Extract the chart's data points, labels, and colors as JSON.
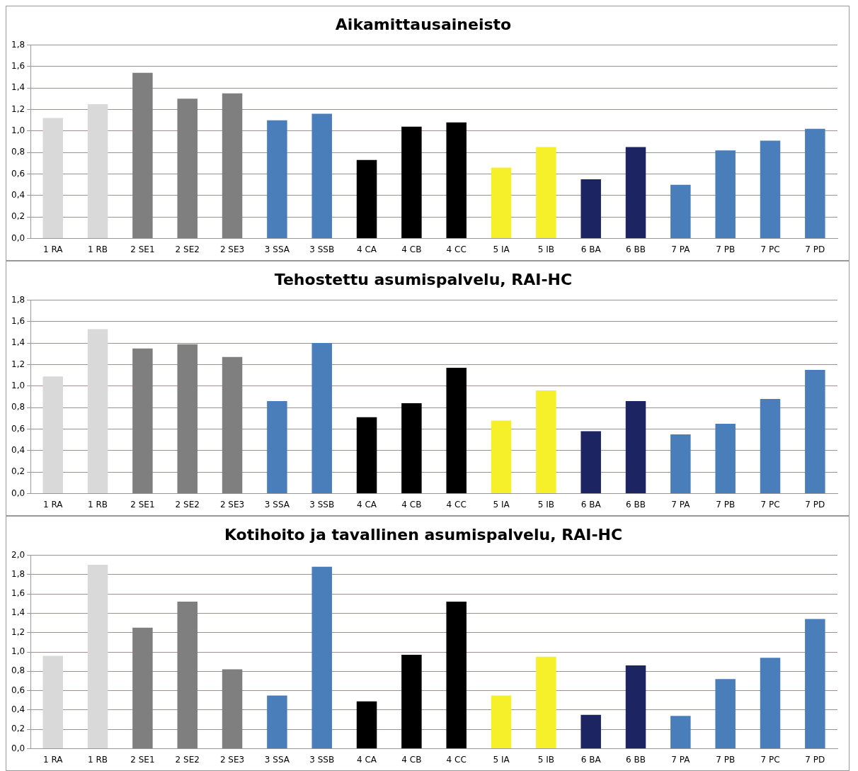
{
  "chart_data": [
    {
      "type": "bar",
      "title": "Aikamittausaineisto",
      "categories": [
        "1 RA",
        "1 RB",
        "2 SE1",
        "2 SE2",
        "2 SE3",
        "3 SSA",
        "3 SSB",
        "4 CA",
        "4 CB",
        "4 CC",
        "5 IA",
        "5 IB",
        "6 BA",
        "6 BB",
        "7 PA",
        "7 PB",
        "7 PC",
        "7 PD"
      ],
      "values": [
        1.12,
        1.25,
        1.54,
        1.3,
        1.35,
        1.1,
        1.16,
        0.73,
        1.04,
        1.08,
        0.66,
        0.85,
        0.55,
        0.85,
        0.5,
        0.82,
        0.91,
        1.02
      ],
      "colors": [
        "#d9d9d9",
        "#d9d9d9",
        "#7f7f7f",
        "#7f7f7f",
        "#7f7f7f",
        "#4a7ebb",
        "#4a7ebb",
        "#000000",
        "#000000",
        "#000000",
        "#f5f02a",
        "#f5f02a",
        "#1c2461",
        "#1c2461",
        "#4a7ebb",
        "#4a7ebb",
        "#4a7ebb",
        "#4a7ebb"
      ],
      "ylim": [
        0,
        1.8
      ],
      "yticks": [
        {
          "value": 0,
          "label": "0,0"
        },
        {
          "value": 0.2,
          "label": "0,2"
        },
        {
          "value": 0.4,
          "label": "0,4"
        },
        {
          "value": 0.6,
          "label": "0,6"
        },
        {
          "value": 0.8,
          "label": "0,8"
        },
        {
          "value": 1,
          "label": "1,0"
        },
        {
          "value": 1.2,
          "label": "1,2"
        },
        {
          "value": 1.4,
          "label": "1,4"
        },
        {
          "value": 1.6,
          "label": "1,6"
        },
        {
          "value": 1.8,
          "label": "1,8"
        }
      ],
      "grid": "y"
    },
    {
      "type": "bar",
      "title": "Tehostettu asumispalvelu, RAI-HC",
      "categories": [
        "1 RA",
        "1 RB",
        "2 SE1",
        "2 SE2",
        "2 SE3",
        "3 SSA",
        "3 SSB",
        "4 CA",
        "4 CB",
        "4 CC",
        "5 IA",
        "5 IB",
        "6 BA",
        "6 BB",
        "7 PA",
        "7 PB",
        "7 PC",
        "7 PD"
      ],
      "values": [
        1.09,
        1.53,
        1.35,
        1.39,
        1.27,
        0.86,
        1.4,
        0.71,
        0.84,
        1.17,
        0.68,
        0.96,
        0.58,
        0.86,
        0.55,
        0.65,
        0.88,
        1.15
      ],
      "colors": [
        "#d9d9d9",
        "#d9d9d9",
        "#7f7f7f",
        "#7f7f7f",
        "#7f7f7f",
        "#4a7ebb",
        "#4a7ebb",
        "#000000",
        "#000000",
        "#000000",
        "#f5f02a",
        "#f5f02a",
        "#1c2461",
        "#1c2461",
        "#4a7ebb",
        "#4a7ebb",
        "#4a7ebb",
        "#4a7ebb"
      ],
      "ylim": [
        0,
        1.8
      ],
      "yticks": [
        {
          "value": 0,
          "label": "0,0"
        },
        {
          "value": 0.2,
          "label": "0,2"
        },
        {
          "value": 0.4,
          "label": "0,4"
        },
        {
          "value": 0.6,
          "label": "0,6"
        },
        {
          "value": 0.8,
          "label": "0,8"
        },
        {
          "value": 1,
          "label": "1,0"
        },
        {
          "value": 1.2,
          "label": "1,2"
        },
        {
          "value": 1.4,
          "label": "1,4"
        },
        {
          "value": 1.6,
          "label": "1,6"
        },
        {
          "value": 1.8,
          "label": "1,8"
        }
      ],
      "grid": "y"
    },
    {
      "type": "bar",
      "title": "Kotihoito ja tavallinen asumispalvelu, RAI-HC",
      "categories": [
        "1 RA",
        "1 RB",
        "2 SE1",
        "2 SE2",
        "2 SE3",
        "3 SSA",
        "3 SSB",
        "4 CA",
        "4 CB",
        "4 CC",
        "5 IA",
        "5 IB",
        "6 BA",
        "6 BB",
        "7 PA",
        "7 PB",
        "7 PC",
        "7 PD"
      ],
      "values": [
        0.96,
        1.9,
        1.25,
        1.52,
        0.82,
        0.55,
        1.88,
        0.49,
        0.97,
        1.52,
        0.55,
        0.95,
        0.35,
        0.86,
        0.34,
        0.72,
        0.94,
        1.34
      ],
      "colors": [
        "#d9d9d9",
        "#d9d9d9",
        "#7f7f7f",
        "#7f7f7f",
        "#7f7f7f",
        "#4a7ebb",
        "#4a7ebb",
        "#000000",
        "#000000",
        "#000000",
        "#f5f02a",
        "#f5f02a",
        "#1c2461",
        "#1c2461",
        "#4a7ebb",
        "#4a7ebb",
        "#4a7ebb",
        "#4a7ebb"
      ],
      "ylim": [
        0,
        2.0
      ],
      "yticks": [
        {
          "value": 0,
          "label": "0,0"
        },
        {
          "value": 0.2,
          "label": "0,2"
        },
        {
          "value": 0.4,
          "label": "0,4"
        },
        {
          "value": 0.6,
          "label": "0,6"
        },
        {
          "value": 0.8,
          "label": "0,8"
        },
        {
          "value": 1,
          "label": "1,0"
        },
        {
          "value": 1.2,
          "label": "1,2"
        },
        {
          "value": 1.4,
          "label": "1,4"
        },
        {
          "value": 1.6,
          "label": "1,6"
        },
        {
          "value": 1.8,
          "label": "1,8"
        },
        {
          "value": 2.0,
          "label": "2,0"
        }
      ],
      "grid": "y"
    }
  ]
}
